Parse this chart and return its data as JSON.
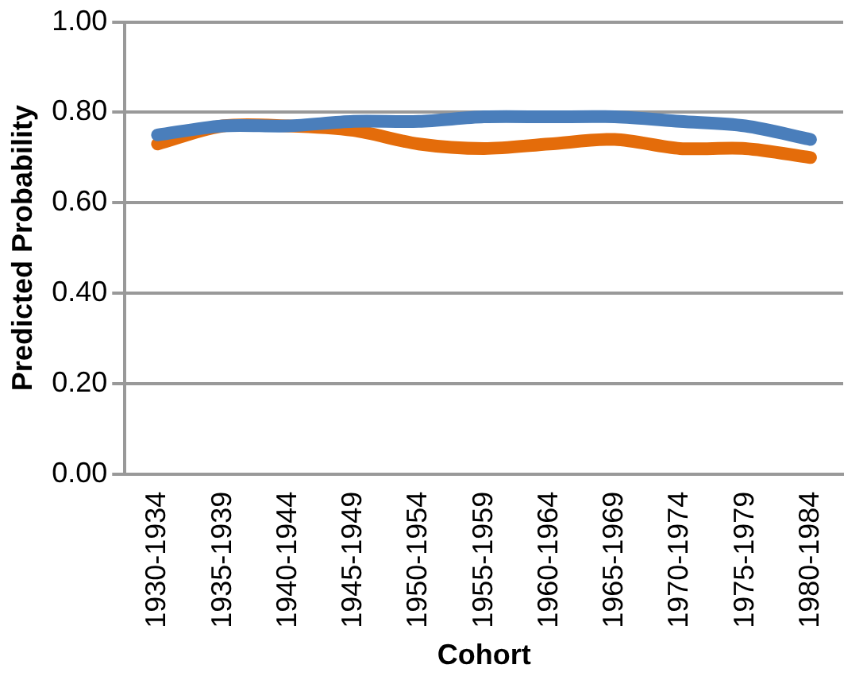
{
  "chart_data": {
    "type": "line",
    "xlabel": "Cohort",
    "ylabel": "Predicted Probability",
    "categories": [
      "1930-1934",
      "1935-1939",
      "1940-1944",
      "1945-1949",
      "1950-1954",
      "1955-1959",
      "1960-1964",
      "1965-1969",
      "1970-1974",
      "1975-1979",
      "1980-1984"
    ],
    "series": [
      {
        "color": "#4a7ebb",
        "values": [
          0.75,
          0.77,
          0.77,
          0.78,
          0.78,
          0.79,
          0.79,
          0.79,
          0.78,
          0.77,
          0.74
        ]
      },
      {
        "color": "#e46c0a",
        "values": [
          0.73,
          0.77,
          0.77,
          0.76,
          0.73,
          0.72,
          0.73,
          0.74,
          0.72,
          0.72,
          0.7
        ]
      }
    ],
    "ylim": [
      0,
      1
    ],
    "yticks": [
      {
        "value": 0,
        "label": "0.00"
      },
      {
        "value": 0.2,
        "label": "0.20"
      },
      {
        "value": 0.4,
        "label": "0.40"
      },
      {
        "value": 0.6,
        "label": "0.60"
      },
      {
        "value": 0.8,
        "label": "0.80"
      },
      {
        "value": 1,
        "label": "1.00"
      }
    ],
    "grid": "y",
    "marker": "none",
    "line_style": "solid"
  }
}
